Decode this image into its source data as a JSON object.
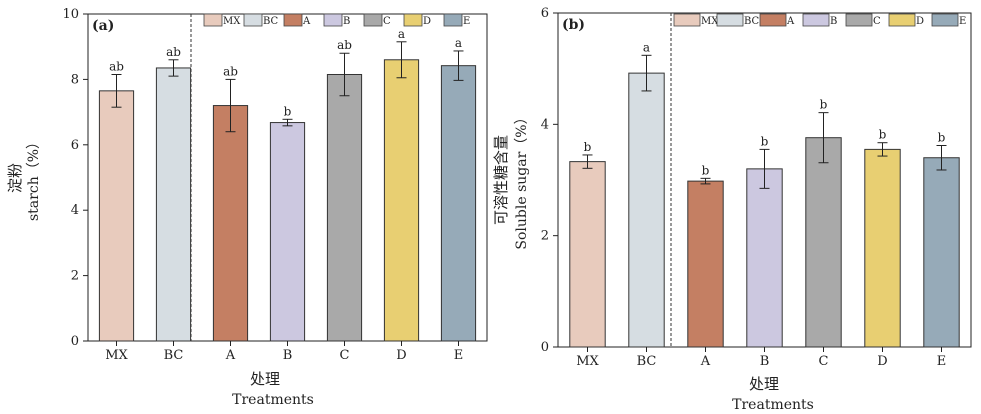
{
  "chart_data": [
    {
      "type": "bar",
      "panel_label": "(a)",
      "categories": [
        "MX",
        "BC",
        "A",
        "B",
        "C",
        "D",
        "E"
      ],
      "values": [
        7.65,
        8.35,
        7.2,
        6.68,
        8.15,
        8.6,
        8.42
      ],
      "errors": [
        0.5,
        0.25,
        0.8,
        0.1,
        0.65,
        0.55,
        0.45
      ],
      "significance": [
        "ab",
        "ab",
        "ab",
        "b",
        "ab",
        "a",
        "a"
      ],
      "colors": [
        "#e8cbbd",
        "#d6dde2",
        "#c47f63",
        "#ccc8e0",
        "#a9a9a9",
        "#e8cf72",
        "#96aab8"
      ],
      "ylabel_cn": "淀粉",
      "ylabel_en": "starch（%）",
      "xlabel_cn": "处理",
      "xlabel_en": "Treatments",
      "ylim": [
        0,
        10
      ],
      "yticks": [
        0,
        2,
        4,
        6,
        8,
        10
      ],
      "legend_placement": "top-right",
      "grid": false
    },
    {
      "type": "bar",
      "panel_label": "(b)",
      "categories": [
        "MX",
        "BC",
        "A",
        "B",
        "C",
        "D",
        "E"
      ],
      "values": [
        3.33,
        4.92,
        2.98,
        3.2,
        3.76,
        3.55,
        3.4
      ],
      "errors": [
        0.12,
        0.32,
        0.05,
        0.35,
        0.45,
        0.12,
        0.22
      ],
      "significance": [
        "b",
        "a",
        "b",
        "b",
        "b",
        "b",
        "b"
      ],
      "colors": [
        "#e8cbbd",
        "#d6dde2",
        "#c47f63",
        "#ccc8e0",
        "#a9a9a9",
        "#e8cf72",
        "#96aab8"
      ],
      "ylabel_cn": "可溶性糖含量",
      "ylabel_en": "Soluble sugar（%）",
      "xlabel_cn": "处理",
      "xlabel_en": "Treatments",
      "ylim": [
        0,
        6
      ],
      "yticks": [
        0,
        2,
        4,
        6
      ],
      "legend_placement": "top-right",
      "grid": false
    }
  ]
}
